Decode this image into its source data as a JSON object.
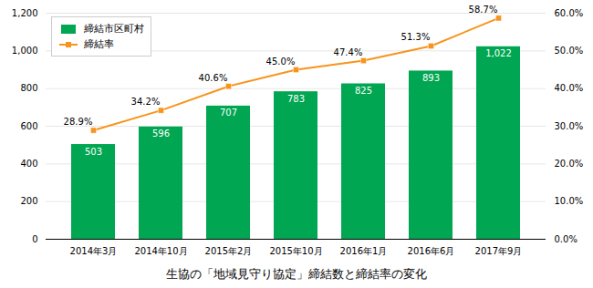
{
  "chart_data": {
    "type": "bar",
    "title": "生協の「地域見守り協定」締結数と締結率の変化",
    "categories": [
      "2014年3月",
      "2014年10月",
      "2015年2月",
      "2015年10月",
      "2016年1月",
      "2016年6月",
      "2017年9月"
    ],
    "series": [
      {
        "name": "締結市区町村",
        "type": "bar",
        "color": "#00A651",
        "values": [
          503,
          596,
          707,
          783,
          825,
          893,
          1022
        ],
        "value_labels": [
          "503",
          "596",
          "707",
          "783",
          "825",
          "893",
          "1,022"
        ]
      },
      {
        "name": "締結率",
        "type": "line",
        "axis": "y2",
        "color": "#F7941D",
        "marker": "square",
        "values": [
          28.9,
          34.2,
          40.6,
          45.0,
          47.4,
          51.3,
          58.7
        ],
        "value_labels": [
          "28.9%",
          "34.2%",
          "40.6%",
          "45.0%",
          "47.4%",
          "51.3%",
          "58.7%"
        ]
      }
    ],
    "ylim": [
      0,
      1200
    ],
    "yticks": [
      0,
      200,
      400,
      600,
      800,
      {
        "value": 1000,
        "label": "1,000"
      },
      {
        "value": 1200,
        "label": "1,200"
      }
    ],
    "y2lim": [
      0,
      60
    ],
    "y2ticks": [
      {
        "value": 0,
        "label": "0.0%"
      },
      {
        "value": 10,
        "label": "10.0%"
      },
      {
        "value": 20,
        "label": "20.0%"
      },
      {
        "value": 30,
        "label": "30.0%"
      },
      {
        "value": 40,
        "label": "40.0%"
      },
      {
        "value": 50,
        "label": "50.0%"
      },
      {
        "value": 60,
        "label": "60.0%"
      }
    ],
    "grid": true,
    "legend": "upper left",
    "data_labels": true
  }
}
